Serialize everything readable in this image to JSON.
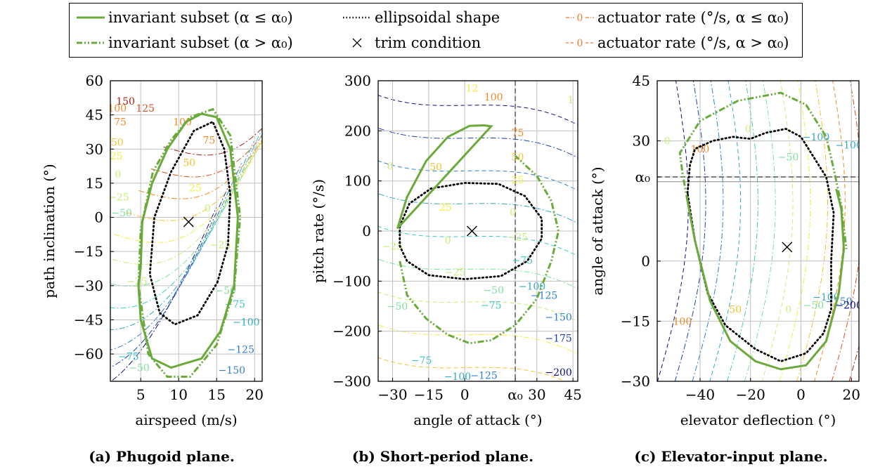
{
  "legend": {
    "items": [
      {
        "id": "inv-low",
        "label": "invariant subset (α ≤ α₀)",
        "style": "solid",
        "color": "#6aaa3a"
      },
      {
        "id": "inv-high",
        "label": "invariant subset (α > α₀)",
        "style": "dashdotdot",
        "color": "#6aaa3a"
      },
      {
        "id": "ellipsoid",
        "label": "ellipsoidal shape",
        "style": "dotted",
        "color": "#000000"
      },
      {
        "id": "trim",
        "label": "trim condition",
        "style": "cross",
        "color": "#000000"
      },
      {
        "id": "rate-low",
        "label": "actuator rate (°/s, α ≤ α₀)",
        "style": "dashdot",
        "color": "#f07830",
        "sample": "0"
      },
      {
        "id": "rate-high",
        "label": "actuator rate (°/s, α > α₀)",
        "style": "dashed",
        "color": "#f07830",
        "sample": "0"
      }
    ]
  },
  "colors": {
    "invariant": "#6aaa3a",
    "ellipsoid": "#000000",
    "contour_ramp": [
      "#0b0b8a",
      "#1c3fae",
      "#2f7fd0",
      "#33a8c8",
      "#3fc9c0",
      "#7fe0a0",
      "#c8ee7a",
      "#f2ef40",
      "#f6c030",
      "#f08a28",
      "#d85020",
      "#a82012"
    ]
  },
  "chart_data": [
    {
      "type": "contour",
      "caption": "(a) Phugoid plane.",
      "xlabel": "airspeed (m/s)",
      "ylabel": "path inclination (°)",
      "xlim": [
        1,
        21
      ],
      "ylim": [
        -72,
        60
      ],
      "xticks": [
        5,
        10,
        15,
        20
      ],
      "yticks": [
        -60,
        -45,
        -30,
        -15,
        0,
        15,
        30,
        45,
        60
      ],
      "grid": true,
      "trim": [
        11.3,
        -2
      ],
      "contour_labels": [
        {
          "text": "150",
          "x": 3.0,
          "y": 51
        },
        {
          "text": "125",
          "x": 5.6,
          "y": 48
        },
        {
          "text": "100",
          "x": 10.5,
          "y": 42
        },
        {
          "text": "75",
          "x": 14.0,
          "y": 34
        },
        {
          "text": "50",
          "x": 11.4,
          "y": 24
        },
        {
          "text": "25",
          "x": 12.2,
          "y": 13
        },
        {
          "text": "0",
          "x": 13.8,
          "y": 4
        },
        {
          "text": "−25",
          "x": 15.5,
          "y": -12
        },
        {
          "text": "−25",
          "x": 4.5,
          "y": -28
        },
        {
          "text": "−50",
          "x": 16.2,
          "y": -32
        },
        {
          "text": "−75",
          "x": 17.4,
          "y": -38
        },
        {
          "text": "−100",
          "x": 18.9,
          "y": -46
        },
        {
          "text": "−125",
          "x": 18.2,
          "y": -58
        },
        {
          "text": "−150",
          "x": 17.0,
          "y": -67
        },
        {
          "text": "75",
          "x": 2.3,
          "y": 42
        },
        {
          "text": "50",
          "x": 1.9,
          "y": 33
        },
        {
          "text": "25",
          "x": 1.8,
          "y": 27
        },
        {
          "text": "0",
          "x": 2.0,
          "y": 19
        },
        {
          "text": "−25",
          "x": 2.1,
          "y": 9
        },
        {
          "text": "−50",
          "x": 2.5,
          "y": 2
        },
        {
          "text": "−75",
          "x": 3.4,
          "y": -61
        },
        {
          "text": "−50",
          "x": 4.8,
          "y": -66
        },
        {
          "text": "100",
          "x": 1.9,
          "y": 48
        }
      ],
      "invariant_low": [
        [
          5.0,
          -22
        ],
        [
          5.2,
          -2
        ],
        [
          6.5,
          15
        ],
        [
          8.5,
          30
        ],
        [
          11.0,
          42
        ],
        [
          13.0,
          45.5
        ],
        [
          15.0,
          44
        ],
        [
          16.8,
          30
        ],
        [
          17.8,
          0
        ],
        [
          17.3,
          -30
        ],
        [
          15.5,
          -50
        ],
        [
          13.0,
          -62
        ],
        [
          9.0,
          -66
        ],
        [
          6.5,
          -62
        ],
        [
          5.0,
          -45
        ],
        [
          4.7,
          -30
        ],
        [
          5.0,
          -22
        ]
      ],
      "invariant_high": [
        [
          4.7,
          -30
        ],
        [
          5.0,
          -5
        ],
        [
          6.6,
          20
        ],
        [
          9.0,
          34
        ],
        [
          11.5,
          44
        ],
        [
          14.5,
          47.5
        ],
        [
          16.8,
          36
        ],
        [
          18.1,
          0
        ],
        [
          17.3,
          -32
        ],
        [
          15.0,
          -56
        ],
        [
          11.5,
          -70
        ],
        [
          8.5,
          -70
        ],
        [
          6.0,
          -60
        ],
        [
          4.7,
          -30
        ]
      ],
      "ellipsoid": [
        [
          15.1,
          -28.5
        ],
        [
          16.5,
          -12
        ],
        [
          16.8,
          10
        ],
        [
          16.0,
          30
        ],
        [
          14.5,
          42
        ],
        [
          12.0,
          38
        ],
        [
          9.0,
          20
        ],
        [
          6.8,
          0
        ],
        [
          6.2,
          -25
        ],
        [
          7.5,
          -42
        ],
        [
          9.5,
          -47
        ],
        [
          12.5,
          -43
        ],
        [
          15.1,
          -28.5
        ]
      ]
    },
    {
      "type": "contour",
      "caption": "(b) Short-period plane.",
      "xlabel": "angle of attack (°)",
      "ylabel": "pitch rate (°/s)",
      "xlim": [
        -36,
        47
      ],
      "ylim": [
        -300,
        300
      ],
      "xticks": [
        -30,
        -15,
        0,
        15,
        30,
        45
      ],
      "xtick_labels": [
        "−30",
        "−15",
        "0",
        "α₀",
        "30",
        "45"
      ],
      "xtick_values": [
        -30,
        -15,
        0,
        21,
        30,
        45
      ],
      "yticks": [
        -300,
        -200,
        -100,
        0,
        100,
        200,
        300
      ],
      "alpha0": 21,
      "alpha0_label": "α₀",
      "grid": true,
      "trim": [
        3,
        0
      ],
      "contour_labels": [
        {
          "text": "12",
          "x": 3,
          "y": 285
        },
        {
          "text": "100",
          "x": 12,
          "y": 268
        },
        {
          "text": "75",
          "x": 22,
          "y": 196
        },
        {
          "text": "50",
          "x": -12,
          "y": 128
        },
        {
          "text": "50",
          "x": 22,
          "y": 148
        },
        {
          "text": "25",
          "x": -8,
          "y": 48
        },
        {
          "text": "25",
          "x": 22,
          "y": 102
        },
        {
          "text": "0",
          "x": -7,
          "y": -18
        },
        {
          "text": "0",
          "x": 20,
          "y": 38
        },
        {
          "text": "0",
          "x": -31,
          "y": 130
        },
        {
          "text": "−25",
          "x": -30,
          "y": -30
        },
        {
          "text": "−25",
          "x": 22,
          "y": -12
        },
        {
          "text": "−50",
          "x": -28,
          "y": -150
        },
        {
          "text": "−50",
          "x": 12,
          "y": -118
        },
        {
          "text": "−75",
          "x": -18,
          "y": -258
        },
        {
          "text": "−75",
          "x": 11,
          "y": -148
        },
        {
          "text": "−75",
          "x": 24,
          "y": -58
        },
        {
          "text": "−100",
          "x": -3,
          "y": -290
        },
        {
          "text": "−100",
          "x": 28,
          "y": -110
        },
        {
          "text": "−125",
          "x": 8,
          "y": -288
        },
        {
          "text": "−125",
          "x": 33,
          "y": -128
        },
        {
          "text": "−150",
          "x": 39,
          "y": -172
        },
        {
          "text": "−175",
          "x": 39,
          "y": -214
        },
        {
          "text": "−200",
          "x": 39,
          "y": -282
        },
        {
          "text": "−25",
          "x": -4,
          "y": -82
        },
        {
          "text": "1",
          "x": 44,
          "y": 262
        }
      ],
      "invariant_low": [
        [
          -28,
          5
        ],
        [
          -24,
          68
        ],
        [
          -16,
          140
        ],
        [
          -7,
          188
        ],
        [
          2,
          210
        ],
        [
          8,
          211
        ],
        [
          11,
          209
        ],
        [
          -28,
          5
        ]
      ],
      "invariant_high": [
        [
          -27,
          -60
        ],
        [
          -24,
          -128
        ],
        [
          -16,
          -175
        ],
        [
          -7,
          -207
        ],
        [
          2,
          -224
        ],
        [
          11,
          -218
        ],
        [
          21,
          -188
        ],
        [
          30,
          -135
        ],
        [
          36,
          -60
        ],
        [
          39,
          0
        ],
        [
          36,
          60
        ],
        [
          30,
          110
        ],
        [
          21,
          150
        ]
      ],
      "ellipsoid": [
        [
          -27,
          10
        ],
        [
          -23,
          55
        ],
        [
          -14,
          85
        ],
        [
          0,
          96
        ],
        [
          14,
          94
        ],
        [
          25,
          70
        ],
        [
          32,
          25
        ],
        [
          32,
          -15
        ],
        [
          26,
          -60
        ],
        [
          15,
          -90
        ],
        [
          0,
          -96
        ],
        [
          -15,
          -88
        ],
        [
          -24,
          -60
        ],
        [
          -27,
          -30
        ],
        [
          -27,
          10
        ]
      ]
    },
    {
      "type": "contour",
      "caption": "(c) Elevator-input plane.",
      "xlabel": "elevator deflection (°)",
      "ylabel": "angle of attack (°)",
      "xlim": [
        -57,
        23
      ],
      "ylim": [
        -30,
        45
      ],
      "xticks": [
        -40,
        -20,
        0,
        20
      ],
      "yticks": [
        -30,
        -15,
        0,
        15,
        30,
        45
      ],
      "ytick_labels": [
        "−30",
        "−15",
        "0",
        "α₀",
        "30",
        "45"
      ],
      "ytick_values": [
        -30,
        -15,
        0,
        21,
        30,
        45
      ],
      "alpha0": 21,
      "alpha0_label": "α₀",
      "grid": true,
      "trim": [
        -5.5,
        3.5
      ],
      "contour_labels": [
        {
          "text": "0",
          "x": -53,
          "y": 30
        },
        {
          "text": "100",
          "x": -40,
          "y": 28
        },
        {
          "text": "0",
          "x": -21,
          "y": 33
        },
        {
          "text": "−50",
          "x": -5,
          "y": 26
        },
        {
          "text": "−100",
          "x": 6,
          "y": 31
        },
        {
          "text": "−100",
          "x": 19,
          "y": 29
        },
        {
          "text": "100",
          "x": -47,
          "y": -15
        },
        {
          "text": "50",
          "x": -26,
          "y": -12
        },
        {
          "text": "0",
          "x": -5,
          "y": -12
        },
        {
          "text": "−50",
          "x": 5,
          "y": -11
        },
        {
          "text": "−100",
          "x": 10,
          "y": -9
        },
        {
          "text": "−150",
          "x": 15,
          "y": -10
        },
        {
          "text": "−200",
          "x": 19,
          "y": -11
        }
      ],
      "invariant_low": [
        [
          -45,
          15
        ],
        [
          -42,
          5
        ],
        [
          -36,
          -10
        ],
        [
          -28,
          -20
        ],
        [
          -18,
          -25
        ],
        [
          -8,
          -27
        ],
        [
          2,
          -26
        ],
        [
          10,
          -20
        ],
        [
          15,
          -8
        ],
        [
          17,
          3
        ],
        [
          16,
          13
        ],
        [
          14,
          18
        ]
      ],
      "invariant_high": [
        [
          -45,
          15
        ],
        [
          -47,
          22
        ],
        [
          -48,
          27
        ],
        [
          -40,
          35
        ],
        [
          -25,
          40
        ],
        [
          -8,
          42
        ],
        [
          2,
          39
        ],
        [
          10,
          31
        ],
        [
          13,
          23
        ],
        [
          16,
          14
        ],
        [
          18,
          3
        ]
      ],
      "ellipsoid": [
        [
          -45,
          17
        ],
        [
          -44,
          24
        ],
        [
          -42,
          28
        ],
        [
          -35,
          30
        ],
        [
          -27,
          31
        ],
        [
          -20,
          30.5
        ],
        [
          -14,
          32
        ],
        [
          -6,
          33
        ],
        [
          0,
          31
        ],
        [
          5,
          26
        ],
        [
          10,
          21
        ],
        [
          13,
          12
        ],
        [
          12,
          0
        ],
        [
          12,
          -12
        ],
        [
          9,
          -18
        ],
        [
          2,
          -23
        ],
        [
          -8,
          -25
        ],
        [
          -18,
          -22
        ],
        [
          -30,
          -16
        ],
        [
          -37,
          -8
        ],
        [
          -42,
          5
        ],
        [
          -45,
          17
        ]
      ]
    }
  ]
}
